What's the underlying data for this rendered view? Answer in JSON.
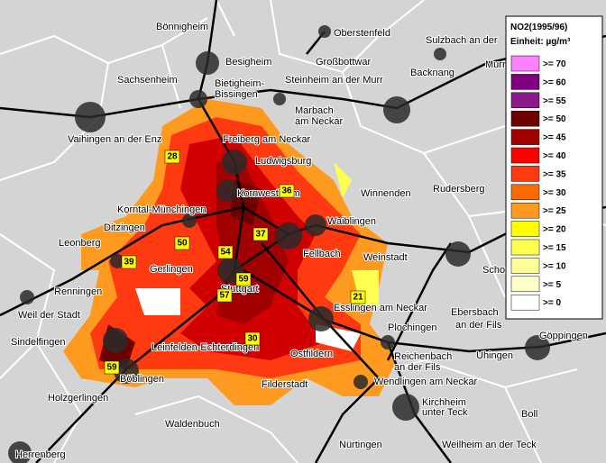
{
  "legend": {
    "title": "NO2(1995/96)",
    "unit": "Einheit: µg/m³",
    "items": [
      {
        "label": ">= 70",
        "color": "#ff80ff"
      },
      {
        "label": ">= 60",
        "color": "#800080"
      },
      {
        "label": ">= 55",
        "color": "#8b1a8b"
      },
      {
        "label": ">= 50",
        "color": "#700000"
      },
      {
        "label": ">= 45",
        "color": "#a00000"
      },
      {
        "label": ">= 40",
        "color": "#ff0000"
      },
      {
        "label": ">= 35",
        "color": "#ff3a10"
      },
      {
        "label": ">= 30",
        "color": "#ff6a00"
      },
      {
        "label": ">= 25",
        "color": "#ff9a20"
      },
      {
        "label": ">= 20",
        "color": "#ffff00"
      },
      {
        "label": ">= 15",
        "color": "#ffff50"
      },
      {
        "label": ">= 10",
        "color": "#ffff99"
      },
      {
        "label": ">= 5",
        "color": "#ffffc8"
      },
      {
        "label": ">= 0",
        "color": "#ffffff"
      }
    ]
  },
  "places": [
    "Bönnigheim",
    "Oberstenfeld",
    "Sulzbach an der",
    "Murr",
    "Besigheim",
    "Großbottwar",
    "Sachsenheim",
    "Bietigheim-",
    "Bissingen",
    "Steinheim an der Murr",
    "Backnang",
    "Marbach",
    "am Neckar",
    "Vaihingen an der Enz",
    "Freiberg am Neckar",
    "Ludwigsburg",
    "Rudersberg",
    "Winnenden",
    "Kornwestheim",
    "Korntal-Münchingen",
    "Ditzingen",
    "Waiblingen",
    "Leonberg",
    "Fellbach",
    "Weinstadt",
    "Schorndorf",
    "Gerlingen",
    "Renningen",
    "Stuttgart",
    "Weil der Stadt",
    "Esslingen am Neckar",
    "Ebersbach",
    "an der Fils",
    "Plochingen",
    "Sindelfingen",
    "Leinfelden-Echterdingen",
    "Reichenbach",
    "an der Fils",
    "Uhingen",
    "Göppingen",
    "Ostfildern",
    "Böblingen",
    "Wendlingen am Neckar",
    "Filderstadt",
    "Holzgerlingen",
    "Kirchheim",
    "unter Teck",
    "Boll",
    "Waldenbuch",
    "Herrenberg",
    "Nürtingen",
    "Weilheim an der Teck"
  ],
  "measurements": [
    "28",
    "36",
    "37",
    "50",
    "54",
    "39",
    "59",
    "57",
    "21",
    "30",
    "59"
  ]
}
